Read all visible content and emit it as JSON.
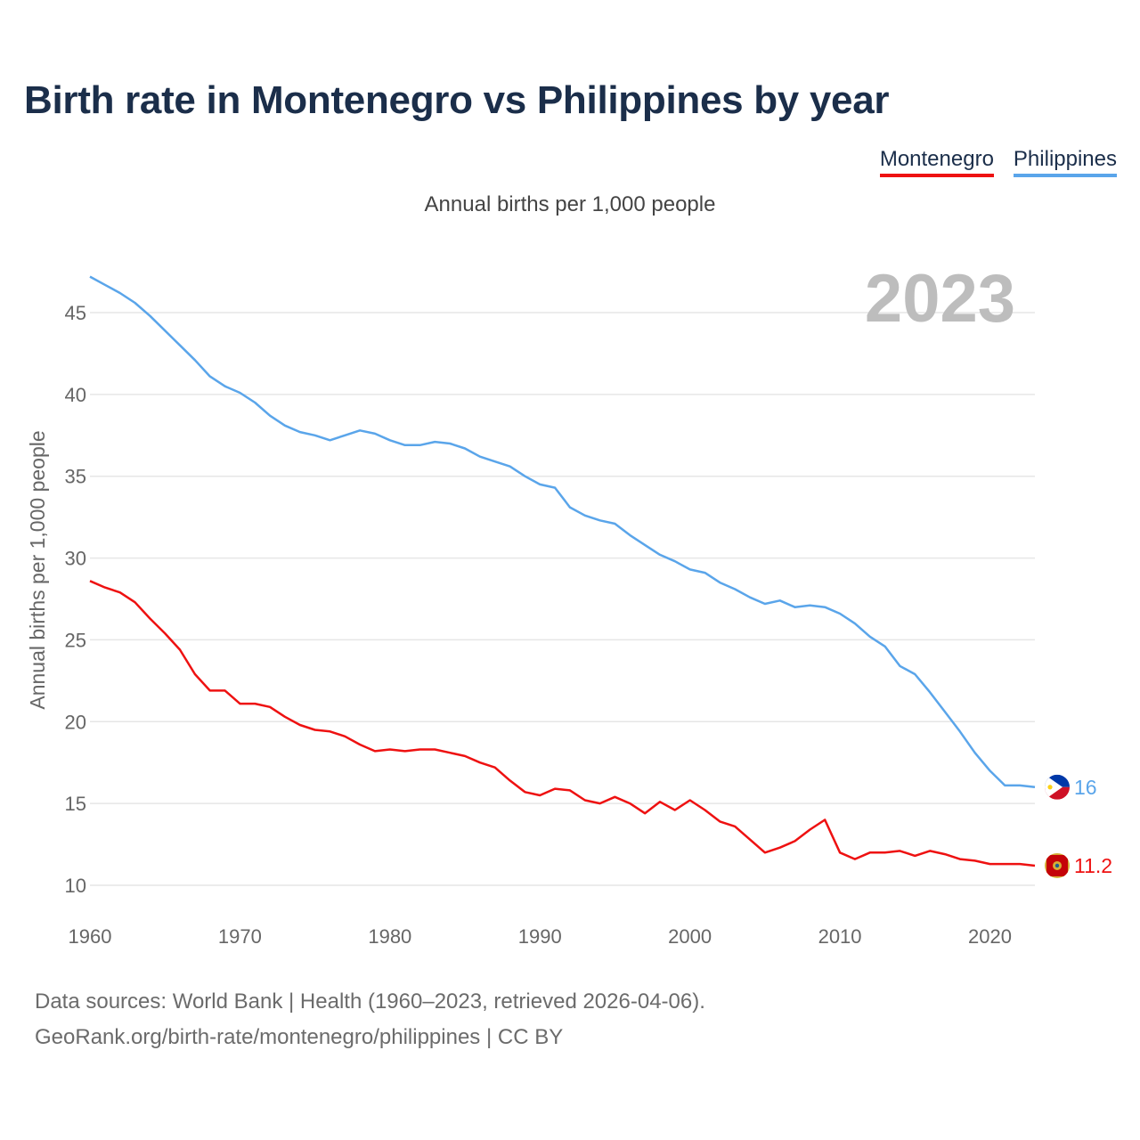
{
  "title": "Birth rate in Montenegro vs Philippines by year",
  "subtitle": "Annual births per 1,000 people",
  "legend": [
    {
      "label": "Montenegro",
      "color": "#ee1111"
    },
    {
      "label": "Philippines",
      "color": "#5aa5ea"
    }
  ],
  "year_display": "2023",
  "end_labels": {
    "montenegro": "11.2",
    "philippines": "16"
  },
  "source": {
    "line1": "Data sources: World Bank | Health (1960–2023, retrieved 2026-04-06).",
    "line2": "GeoRank.org/birth-rate/montenegro/philippines | CC BY"
  },
  "chart_data": {
    "type": "line",
    "title": "Birth rate in Montenegro vs Philippines by year",
    "xlabel": "",
    "ylabel": "Annual births per 1,000 people",
    "xlim": [
      1960,
      2023
    ],
    "ylim": [
      10,
      47.5
    ],
    "x_ticks": [
      1960,
      1970,
      1980,
      1990,
      2000,
      2010,
      2020
    ],
    "y_ticks": [
      10,
      15,
      20,
      25,
      30,
      35,
      40,
      45
    ],
    "x": [
      1960,
      1961,
      1962,
      1963,
      1964,
      1965,
      1966,
      1967,
      1968,
      1969,
      1970,
      1971,
      1972,
      1973,
      1974,
      1975,
      1976,
      1977,
      1978,
      1979,
      1980,
      1981,
      1982,
      1983,
      1984,
      1985,
      1986,
      1987,
      1988,
      1989,
      1990,
      1991,
      1992,
      1993,
      1994,
      1995,
      1996,
      1997,
      1998,
      1999,
      2000,
      2001,
      2002,
      2003,
      2004,
      2005,
      2006,
      2007,
      2008,
      2009,
      2010,
      2011,
      2012,
      2013,
      2014,
      2015,
      2016,
      2017,
      2018,
      2019,
      2020,
      2021,
      2022,
      2023
    ],
    "series": [
      {
        "name": "Montenegro",
        "color": "#ee1111",
        "values": [
          28.6,
          28.2,
          27.9,
          27.3,
          26.3,
          25.4,
          24.4,
          22.9,
          21.9,
          21.9,
          21.1,
          21.1,
          20.9,
          20.3,
          19.8,
          19.5,
          19.4,
          19.1,
          18.6,
          18.2,
          18.3,
          18.2,
          18.3,
          18.3,
          18.1,
          17.9,
          17.5,
          17.2,
          16.4,
          15.7,
          15.5,
          15.9,
          15.8,
          15.2,
          15.0,
          15.4,
          15.0,
          14.4,
          15.1,
          14.6,
          15.2,
          14.6,
          13.9,
          13.6,
          12.8,
          12.0,
          12.3,
          12.7,
          13.4,
          14.0,
          12.0,
          11.6,
          12.0,
          12.0,
          12.1,
          11.8,
          12.1,
          11.9,
          11.6,
          11.5,
          11.3,
          11.3,
          11.3,
          11.2
        ]
      },
      {
        "name": "Philippines",
        "color": "#5aa5ea",
        "values": [
          47.2,
          46.7,
          46.2,
          45.6,
          44.8,
          43.9,
          43.0,
          42.1,
          41.1,
          40.5,
          40.1,
          39.5,
          38.7,
          38.1,
          37.7,
          37.5,
          37.2,
          37.5,
          37.8,
          37.6,
          37.2,
          36.9,
          36.9,
          37.1,
          37.0,
          36.7,
          36.2,
          35.9,
          35.6,
          35.0,
          34.5,
          34.3,
          33.1,
          32.6,
          32.3,
          32.1,
          31.4,
          30.8,
          30.2,
          29.8,
          29.3,
          29.1,
          28.5,
          28.1,
          27.6,
          27.2,
          27.4,
          27.0,
          27.1,
          27.0,
          26.6,
          26.0,
          25.2,
          24.6,
          23.4,
          22.9,
          21.8,
          20.6,
          19.4,
          18.1,
          17.0,
          16.1,
          16.1,
          16.0
        ]
      }
    ]
  }
}
